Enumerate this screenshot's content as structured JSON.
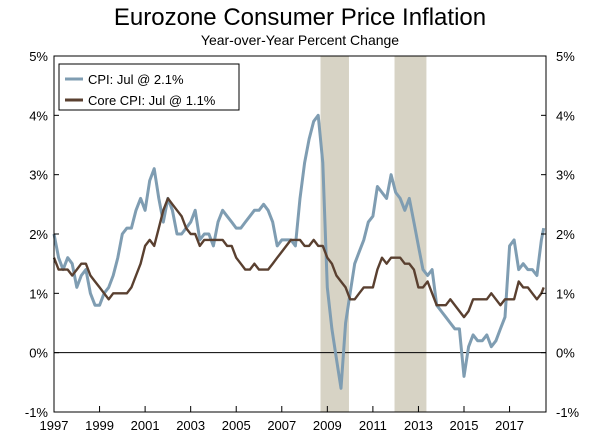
{
  "chart_data": {
    "type": "line",
    "title": "Eurozone Consumer Price Inflation",
    "subtitle": "Year-over-Year Percent Change",
    "xlim": [
      1997,
      2018.6
    ],
    "ylim": [
      -1,
      5
    ],
    "y_ticks": [
      "-1%",
      "0%",
      "1%",
      "2%",
      "3%",
      "4%",
      "5%"
    ],
    "y_tick_values": [
      -1,
      0,
      1,
      2,
      3,
      4,
      5
    ],
    "x_ticks": [
      "1997",
      "1999",
      "2001",
      "2003",
      "2005",
      "2007",
      "2009",
      "2011",
      "2013",
      "2015",
      "2017"
    ],
    "x_tick_values": [
      1997,
      1999,
      2001,
      2003,
      2005,
      2007,
      2009,
      2011,
      2013,
      2015,
      2017
    ],
    "legend": {
      "placement": "top-left",
      "entries": [
        "CPI: Jul @ 2.1%",
        "Core CPI: Jul @ 1.1%"
      ]
    },
    "recessions": [
      {
        "start": 2008.7,
        "end": 2009.95
      },
      {
        "start": 2011.95,
        "end": 2013.35
      }
    ],
    "colors": {
      "cpi": "#7f9db2",
      "core": "#5a4030",
      "shade": "#d7d3c5"
    },
    "series": [
      {
        "name": "CPI: Jul @ 2.1%",
        "x": [
          1997.0,
          1997.2,
          1997.4,
          1997.6,
          1997.8,
          1998.0,
          1998.2,
          1998.4,
          1998.6,
          1998.8,
          1999.0,
          1999.2,
          1999.4,
          1999.6,
          1999.8,
          2000.0,
          2000.2,
          2000.4,
          2000.6,
          2000.8,
          2001.0,
          2001.2,
          2001.4,
          2001.6,
          2001.8,
          2002.0,
          2002.2,
          2002.4,
          2002.6,
          2002.8,
          2003.0,
          2003.2,
          2003.4,
          2003.6,
          2003.8,
          2004.0,
          2004.2,
          2004.4,
          2004.6,
          2004.8,
          2005.0,
          2005.2,
          2005.4,
          2005.6,
          2005.8,
          2006.0,
          2006.2,
          2006.4,
          2006.6,
          2006.8,
          2007.0,
          2007.2,
          2007.4,
          2007.6,
          2007.8,
          2008.0,
          2008.2,
          2008.4,
          2008.6,
          2008.8,
          2009.0,
          2009.2,
          2009.4,
          2009.6,
          2009.8,
          2010.0,
          2010.2,
          2010.4,
          2010.6,
          2010.8,
          2011.0,
          2011.2,
          2011.4,
          2011.6,
          2011.8,
          2012.0,
          2012.2,
          2012.4,
          2012.6,
          2012.8,
          2013.0,
          2013.2,
          2013.4,
          2013.6,
          2013.8,
          2014.0,
          2014.2,
          2014.4,
          2014.6,
          2014.8,
          2015.0,
          2015.2,
          2015.4,
          2015.6,
          2015.8,
          2016.0,
          2016.2,
          2016.4,
          2016.6,
          2016.8,
          2017.0,
          2017.2,
          2017.4,
          2017.6,
          2017.8,
          2018.0,
          2018.2,
          2018.4,
          2018.5
        ],
        "values": [
          2.0,
          1.6,
          1.4,
          1.6,
          1.5,
          1.1,
          1.3,
          1.4,
          1.0,
          0.8,
          0.8,
          1.0,
          1.1,
          1.3,
          1.6,
          2.0,
          2.1,
          2.1,
          2.4,
          2.6,
          2.4,
          2.9,
          3.1,
          2.6,
          2.2,
          2.6,
          2.4,
          2.0,
          2.0,
          2.1,
          2.2,
          2.4,
          1.9,
          2.0,
          2.0,
          1.8,
          2.2,
          2.4,
          2.3,
          2.2,
          2.1,
          2.1,
          2.2,
          2.3,
          2.4,
          2.4,
          2.5,
          2.4,
          2.2,
          1.8,
          1.9,
          1.9,
          1.9,
          1.8,
          2.6,
          3.2,
          3.6,
          3.9,
          4.0,
          3.2,
          1.1,
          0.4,
          -0.1,
          -0.6,
          0.5,
          1.0,
          1.5,
          1.7,
          1.9,
          2.2,
          2.3,
          2.8,
          2.7,
          2.6,
          3.0,
          2.7,
          2.6,
          2.4,
          2.6,
          2.2,
          1.8,
          1.4,
          1.3,
          1.4,
          0.8,
          0.7,
          0.6,
          0.5,
          0.4,
          0.4,
          -0.4,
          0.1,
          0.3,
          0.2,
          0.2,
          0.3,
          0.1,
          0.2,
          0.4,
          0.6,
          1.8,
          1.9,
          1.4,
          1.5,
          1.4,
          1.4,
          1.3,
          1.9,
          2.1
        ]
      },
      {
        "name": "Core CPI: Jul @ 1.1%",
        "x": [
          1997.0,
          1997.2,
          1997.4,
          1997.6,
          1997.8,
          1998.0,
          1998.2,
          1998.4,
          1998.6,
          1998.8,
          1999.0,
          1999.2,
          1999.4,
          1999.6,
          1999.8,
          2000.0,
          2000.2,
          2000.4,
          2000.6,
          2000.8,
          2001.0,
          2001.2,
          2001.4,
          2001.6,
          2001.8,
          2002.0,
          2002.2,
          2002.4,
          2002.6,
          2002.8,
          2003.0,
          2003.2,
          2003.4,
          2003.6,
          2003.8,
          2004.0,
          2004.2,
          2004.4,
          2004.6,
          2004.8,
          2005.0,
          2005.2,
          2005.4,
          2005.6,
          2005.8,
          2006.0,
          2006.2,
          2006.4,
          2006.6,
          2006.8,
          2007.0,
          2007.2,
          2007.4,
          2007.6,
          2007.8,
          2008.0,
          2008.2,
          2008.4,
          2008.6,
          2008.8,
          2009.0,
          2009.2,
          2009.4,
          2009.6,
          2009.8,
          2010.0,
          2010.2,
          2010.4,
          2010.6,
          2010.8,
          2011.0,
          2011.2,
          2011.4,
          2011.6,
          2011.8,
          2012.0,
          2012.2,
          2012.4,
          2012.6,
          2012.8,
          2013.0,
          2013.2,
          2013.4,
          2013.6,
          2013.8,
          2014.0,
          2014.2,
          2014.4,
          2014.6,
          2014.8,
          2015.0,
          2015.2,
          2015.4,
          2015.6,
          2015.8,
          2016.0,
          2016.2,
          2016.4,
          2016.6,
          2016.8,
          2017.0,
          2017.2,
          2017.4,
          2017.6,
          2017.8,
          2018.0,
          2018.2,
          2018.4,
          2018.5
        ],
        "values": [
          1.6,
          1.4,
          1.4,
          1.4,
          1.3,
          1.4,
          1.5,
          1.5,
          1.3,
          1.2,
          1.1,
          1.0,
          0.9,
          1.0,
          1.0,
          1.0,
          1.0,
          1.1,
          1.3,
          1.5,
          1.8,
          1.9,
          1.8,
          2.1,
          2.4,
          2.6,
          2.5,
          2.4,
          2.3,
          2.1,
          2.0,
          2.0,
          1.8,
          1.9,
          1.9,
          1.9,
          1.9,
          1.9,
          1.8,
          1.8,
          1.6,
          1.5,
          1.4,
          1.4,
          1.5,
          1.4,
          1.4,
          1.4,
          1.5,
          1.6,
          1.7,
          1.8,
          1.9,
          1.9,
          1.9,
          1.8,
          1.8,
          1.9,
          1.8,
          1.8,
          1.6,
          1.5,
          1.3,
          1.2,
          1.1,
          0.9,
          0.9,
          1.0,
          1.1,
          1.1,
          1.1,
          1.4,
          1.6,
          1.5,
          1.6,
          1.6,
          1.6,
          1.5,
          1.5,
          1.4,
          1.1,
          1.1,
          1.2,
          1.0,
          0.8,
          0.8,
          0.8,
          0.9,
          0.8,
          0.7,
          0.6,
          0.7,
          0.9,
          0.9,
          0.9,
          0.9,
          1.0,
          0.9,
          0.8,
          0.9,
          0.9,
          0.9,
          1.2,
          1.1,
          1.1,
          1.0,
          0.9,
          1.0,
          1.1
        ]
      }
    ]
  }
}
